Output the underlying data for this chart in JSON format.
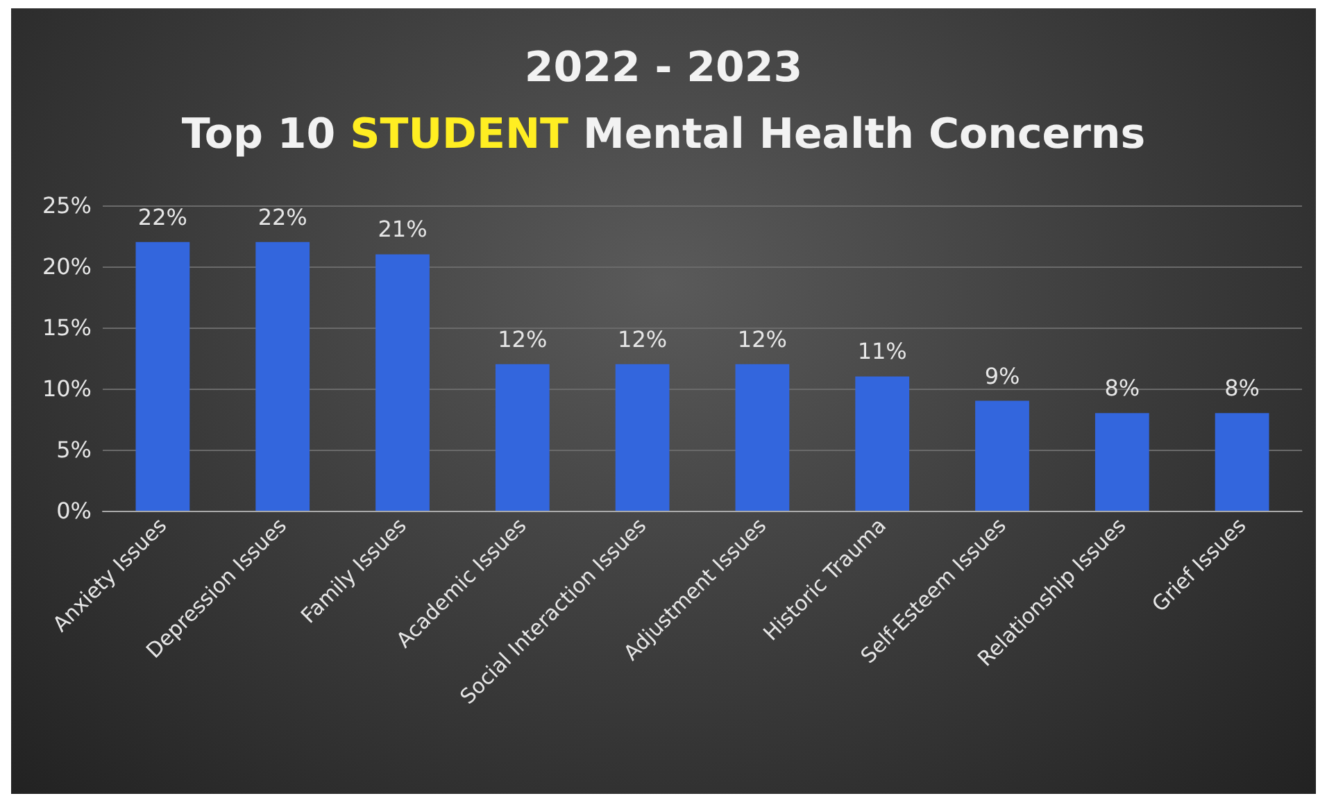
{
  "chart_data": {
    "type": "bar",
    "title": "2022 - 2023\nTop 10 STUDENT Mental Health Concerns",
    "categories": [
      "Anxiety Issues",
      "Depression Issues",
      "Family Issues",
      "Academic Issues",
      "Social Interaction Issues",
      "Adjustment Issues",
      "Historic Trauma",
      "Self-Esteem Issues",
      "Relationship Issues",
      "Grief Issues"
    ],
    "values": [
      22,
      22,
      21,
      12,
      12,
      12,
      11,
      9,
      8,
      8
    ],
    "value_labels": [
      "22%",
      "22%",
      "21%",
      "12%",
      "12%",
      "12%",
      "11%",
      "9%",
      "8%",
      "8%"
    ],
    "color": "#3366dd",
    "ylim": [
      0,
      25
    ],
    "yticks": [
      {
        "value": 0,
        "label": "0%"
      },
      {
        "value": 5,
        "label": "5%"
      },
      {
        "value": 10,
        "label": "10%"
      },
      {
        "value": 15,
        "label": "15%"
      },
      {
        "value": 20,
        "label": "20%"
      },
      {
        "value": 25,
        "label": "25%"
      }
    ],
    "grid": "y"
  }
}
